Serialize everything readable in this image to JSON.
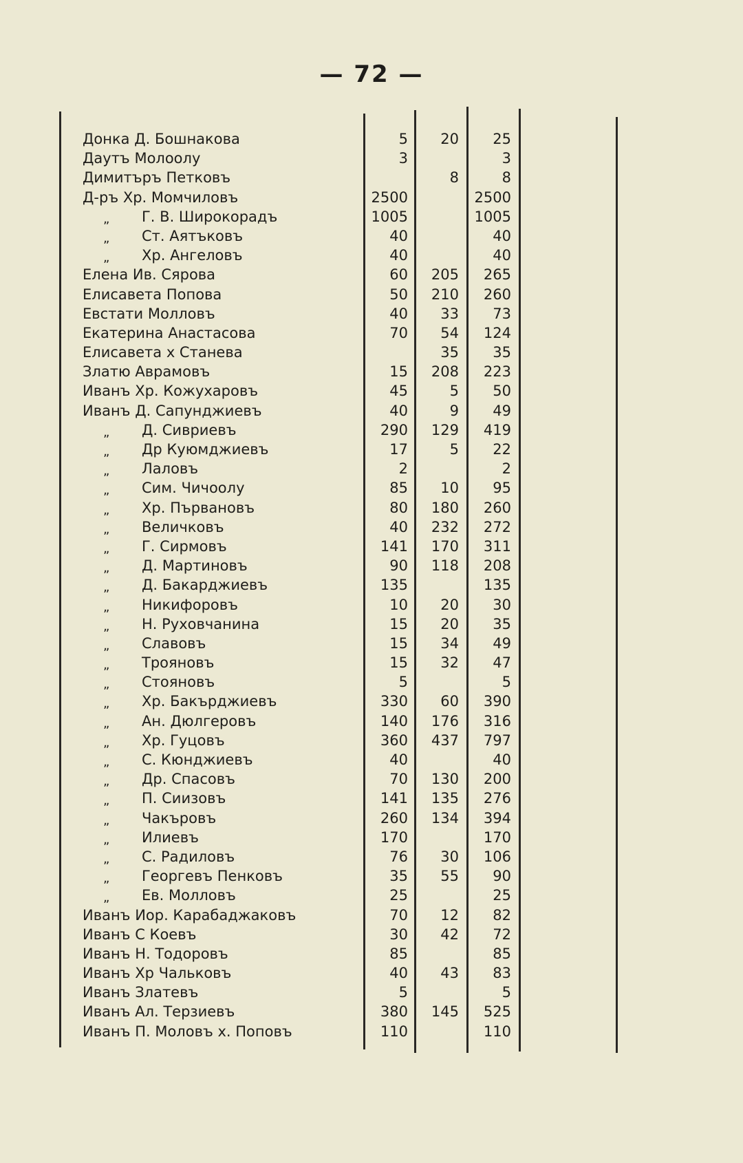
{
  "page_number": "— 72 —",
  "rows": [
    {
      "name": "Донка Д. Бошнакова",
      "c1": "5",
      "c2": "20",
      "c3": "25"
    },
    {
      "name": "Даутъ Молоолу",
      "c1": "3",
      "c2": "",
      "c3": "3"
    },
    {
      "name": "Димитъръ Петковъ",
      "c1": "",
      "c2": "8",
      "c3": "8"
    },
    {
      "name": "Д-ръ Хр. Момчиловъ",
      "c1": "2500",
      "c2": "",
      "c3": "2500"
    },
    {
      "ditto": "„",
      "name": "Г. В. Широкорадъ",
      "c1": "1005",
      "c2": "",
      "c3": "1005"
    },
    {
      "ditto": "„",
      "name": "Ст. Аятъковъ",
      "c1": "40",
      "c2": "",
      "c3": "40"
    },
    {
      "ditto": "„",
      "name": "Хр. Ангеловъ",
      "c1": "40",
      "c2": "",
      "c3": "40"
    },
    {
      "name": "Елена Ив. Сярова",
      "c1": "60",
      "c2": "205",
      "c3": "265"
    },
    {
      "name": "Елисавета Попова",
      "c1": "50",
      "c2": "210",
      "c3": "260"
    },
    {
      "name": "Евстати Молловъ",
      "c1": "40",
      "c2": "33",
      "c3": "73"
    },
    {
      "name": "Екатерина Анастасова",
      "c1": "70",
      "c2": "54",
      "c3": "124"
    },
    {
      "name": "Елисавета х Станева",
      "c1": "",
      "c2": "35",
      "c3": "35"
    },
    {
      "name": "Златю Аврамовъ",
      "c1": "15",
      "c2": "208",
      "c3": "223"
    },
    {
      "name": "Иванъ Хр. Кожухаровъ",
      "c1": "45",
      "c2": "5",
      "c3": "50"
    },
    {
      "name": "Иванъ Д. Сапунджиевъ",
      "c1": "40",
      "c2": "9",
      "c3": "49"
    },
    {
      "ditto": "„",
      "name": "Д. Сивриевъ",
      "c1": "290",
      "c2": "129",
      "c3": "419"
    },
    {
      "ditto": "„",
      "name": "Др Куюмджиевъ",
      "c1": "17",
      "c2": "5",
      "c3": "22"
    },
    {
      "ditto": "„",
      "name": "Лаловъ",
      "c1": "2",
      "c2": "",
      "c3": "2"
    },
    {
      "ditto": "„",
      "name": "Сим. Чичоолу",
      "c1": "85",
      "c2": "10",
      "c3": "95"
    },
    {
      "ditto": "„",
      "name": "Хр. Първановъ",
      "c1": "80",
      "c2": "180",
      "c3": "260"
    },
    {
      "ditto": "„",
      "name": "Величковъ",
      "c1": "40",
      "c2": "232",
      "c3": "272"
    },
    {
      "ditto": "„",
      "name": "Г. Сирмовъ",
      "c1": "141",
      "c2": "170",
      "c3": "311"
    },
    {
      "ditto": "„",
      "name": "Д. Мартиновъ",
      "c1": "90",
      "c2": "118",
      "c3": "208"
    },
    {
      "ditto": "„",
      "name": "Д. Бакарджиевъ",
      "c1": "135",
      "c2": "",
      "c3": "135"
    },
    {
      "ditto": "„",
      "name": "Никифоровъ",
      "c1": "10",
      "c2": "20",
      "c3": "30"
    },
    {
      "ditto": "„",
      "name": "Н. Руховчанина",
      "c1": "15",
      "c2": "20",
      "c3": "35"
    },
    {
      "ditto": "„",
      "name": "Славовъ",
      "c1": "15",
      "c2": "34",
      "c3": "49"
    },
    {
      "ditto": "„",
      "name": "Трояновъ",
      "c1": "15",
      "c2": "32",
      "c3": "47"
    },
    {
      "ditto": "„",
      "name": "Стояновъ",
      "c1": "5",
      "c2": "",
      "c3": "5"
    },
    {
      "ditto": "„",
      "name": "Хр. Бакърджиевъ",
      "c1": "330",
      "c2": "60",
      "c3": "390"
    },
    {
      "ditto": "„",
      "name": "Ан. Дюлгеровъ",
      "c1": "140",
      "c2": "176",
      "c3": "316"
    },
    {
      "ditto": "„",
      "name": "Хр. Гуцовъ",
      "c1": "360",
      "c2": "437",
      "c3": "797"
    },
    {
      "ditto": "„",
      "name": "С. Кюнджиевъ",
      "c1": "40",
      "c2": "",
      "c3": "40"
    },
    {
      "ditto": "„",
      "name": "Др. Спасовъ",
      "c1": "70",
      "c2": "130",
      "c3": "200"
    },
    {
      "ditto": "„",
      "name": "П. Сиизовъ",
      "c1": "141",
      "c2": "135",
      "c3": "276"
    },
    {
      "ditto": "„",
      "name": "Чакъровъ",
      "c1": "260",
      "c2": "134",
      "c3": "394"
    },
    {
      "ditto": "„",
      "name": "Илиевъ",
      "c1": "170",
      "c2": "",
      "c3": "170"
    },
    {
      "ditto": "„",
      "name": "С. Радиловъ",
      "c1": "76",
      "c2": "30",
      "c3": "106"
    },
    {
      "ditto": "„",
      "name": "Георгевъ Пенковъ",
      "c1": "35",
      "c2": "55",
      "c3": "90"
    },
    {
      "ditto": "„",
      "name": "Ев. Молловъ",
      "c1": "25",
      "c2": "",
      "c3": "25"
    },
    {
      "name": "Иванъ  Иор.  Карабаджаковъ",
      "c1": "70",
      "c2": "12",
      "c3": "82"
    },
    {
      "name": "Иванъ С Коевъ",
      "c1": "30",
      "c2": "42",
      "c3": "72"
    },
    {
      "name": "Иванъ Н. Тодоровъ",
      "c1": "85",
      "c2": "",
      "c3": "85"
    },
    {
      "name": "Иванъ Хр Чальковъ",
      "c1": "40",
      "c2": "43",
      "c3": "83"
    },
    {
      "name": "Иванъ Златевъ",
      "c1": "5",
      "c2": "",
      "c3": "5"
    },
    {
      "name": "Иванъ Ал. Терзиевъ",
      "c1": "380",
      "c2": "145",
      "c3": "525"
    },
    {
      "name": "Иванъ П. Моловъ  х.  Поповъ",
      "c1": "110",
      "c2": "",
      "c3": "110"
    }
  ]
}
